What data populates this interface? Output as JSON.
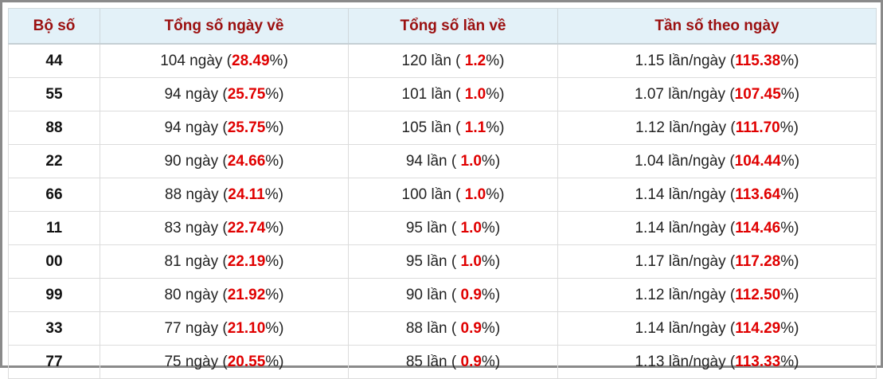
{
  "table": {
    "headers": [
      "Bộ số",
      "Tổng số ngày về",
      "Tổng số lần về",
      "Tần số theo ngày"
    ],
    "rows": [
      [
        "44",
        [
          "104 ngày (",
          "28.49",
          "%)"
        ],
        [
          "120 lần ( ",
          "1.2",
          "%)"
        ],
        [
          "1.15 lần/ngày (",
          "115.38",
          "%)"
        ]
      ],
      [
        "55",
        [
          "94 ngày (",
          "25.75",
          "%)"
        ],
        [
          "101 lần ( ",
          "1.0",
          "%)"
        ],
        [
          "1.07 lần/ngày (",
          "107.45",
          "%)"
        ]
      ],
      [
        "88",
        [
          "94 ngày (",
          "25.75",
          "%)"
        ],
        [
          "105 lần ( ",
          "1.1",
          "%)"
        ],
        [
          "1.12 lần/ngày (",
          "111.70",
          "%)"
        ]
      ],
      [
        "22",
        [
          "90 ngày (",
          "24.66",
          "%)"
        ],
        [
          "94 lần ( ",
          "1.0",
          "%)"
        ],
        [
          "1.04 lần/ngày (",
          "104.44",
          "%)"
        ]
      ],
      [
        "66",
        [
          "88 ngày (",
          "24.11",
          "%)"
        ],
        [
          "100 lần ( ",
          "1.0",
          "%)"
        ],
        [
          "1.14 lần/ngày (",
          "113.64",
          "%)"
        ]
      ],
      [
        "11",
        [
          "83 ngày (",
          "22.74",
          "%)"
        ],
        [
          "95 lần ( ",
          "1.0",
          "%)"
        ],
        [
          "1.14 lần/ngày (",
          "114.46",
          "%)"
        ]
      ],
      [
        "00",
        [
          "81 ngày (",
          "22.19",
          "%)"
        ],
        [
          "95 lần ( ",
          "1.0",
          "%)"
        ],
        [
          "1.17 lần/ngày (",
          "117.28",
          "%)"
        ]
      ],
      [
        "99",
        [
          "80 ngày (",
          "21.92",
          "%)"
        ],
        [
          "90 lần ( ",
          "0.9",
          "%)"
        ],
        [
          "1.12 lần/ngày (",
          "112.50",
          "%)"
        ]
      ],
      [
        "33",
        [
          "77 ngày (",
          "21.10",
          "%)"
        ],
        [
          "88 lần ( ",
          "0.9",
          "%)"
        ],
        [
          "1.14 lần/ngày (",
          "114.29",
          "%)"
        ]
      ],
      [
        "77",
        [
          "75 ngày (",
          "20.55",
          "%)"
        ],
        [
          "85 lần ( ",
          "0.9",
          "%)"
        ],
        [
          "1.13 lần/ngày (",
          "113.33",
          "%)"
        ]
      ]
    ]
  }
}
